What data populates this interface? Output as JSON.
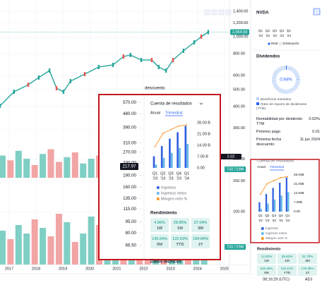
{
  "toolbar": {
    "time": "08:16:29 (UTC)",
    "adj": "ADJ"
  },
  "price_chart": {
    "type": "line",
    "color": "#26a69a",
    "log_scale": true,
    "x": [
      2016.66,
      2017.18,
      2017.71,
      2018.1,
      2018.5,
      2018.76,
      2019.02,
      2019.28,
      2019.81,
      2020.33,
      2020.86,
      2021.25,
      2021.51,
      2021.91,
      2022.3,
      2022.56,
      2022.83,
      2023.09,
      2023.48,
      2023.88,
      2024.14,
      2024.4
    ],
    "values": [
      403,
      485,
      532,
      585,
      641,
      508,
      485,
      558,
      612,
      672,
      691,
      772,
      787,
      737,
      737,
      672,
      641,
      737,
      832,
      930,
      1002,
      1064.69
    ],
    "xlim": [
      2016.66,
      2025.19
    ],
    "xticks": [
      2017,
      2018,
      2019,
      2020,
      2021,
      2022,
      2023,
      2024,
      2025
    ],
    "ylim": [
      70,
      1500
    ],
    "yticks": [
      {
        "value": 1400,
        "label": "1,400.00"
      },
      {
        "value": 1200,
        "label": "1,200.00"
      },
      {
        "value": 1000,
        "label": "1,000.00"
      },
      {
        "value": 800,
        "label": "800.00"
      },
      {
        "value": 600,
        "label": "600.00"
      },
      {
        "value": 500,
        "label": "500.00"
      },
      {
        "value": 400,
        "label": "400.00"
      },
      {
        "value": 300,
        "label": "300.00"
      },
      {
        "value": 200,
        "label": "200.00"
      },
      {
        "value": 150,
        "label": "150.00"
      },
      {
        "value": 100,
        "label": "100.00"
      }
    ],
    "last_price": {
      "value": 1064.69,
      "label": "1,064.69"
    },
    "badges": [
      "2.02",
      "733.719M",
      "733.719M"
    ],
    "volume": {
      "x": [
        2016.75,
        2017.05,
        2017.35,
        2017.65,
        2017.95,
        2018.25,
        2018.55,
        2018.85,
        2019.15,
        2019.45,
        2019.75,
        2020.05,
        2020.35,
        2020.65,
        2020.95,
        2021.25,
        2021.55,
        2021.85,
        2022.15,
        2022.45,
        2022.75,
        2023.05,
        2023.35,
        2023.65,
        2023.95,
        2024.25
      ],
      "values": [
        60,
        45,
        70,
        55,
        80,
        65,
        50,
        90,
        75,
        40,
        55,
        85,
        70,
        60,
        45,
        50,
        65,
        80,
        55,
        70,
        60,
        45,
        75,
        65,
        55,
        50
      ],
      "upper_values": [
        70,
        55,
        85,
        60,
        40,
        75,
        90,
        50,
        65,
        80,
        45,
        60,
        70,
        55,
        85,
        50,
        40,
        65,
        75,
        60,
        50,
        70,
        55,
        80,
        65,
        60
      ],
      "up": [
        true,
        false,
        true,
        true,
        false,
        true,
        false,
        false,
        true,
        false,
        true,
        true,
        false,
        true,
        true,
        false,
        true,
        false,
        false,
        true,
        false,
        true,
        true,
        false,
        true,
        true
      ],
      "colors": {
        "up": "#7fcfc5",
        "down": "#f2a5a5"
      },
      "ylim": [
        0,
        100
      ]
    }
  },
  "popup": {
    "ghost_text": "descuento",
    "footer": "Datos técnicos",
    "price_axis": {
      "log_scale": true,
      "ylim": [
        66.5,
        670
      ],
      "ticks": [
        {
          "value": 670,
          "label": "670.00"
        },
        {
          "value": 570,
          "label": "570.00"
        },
        {
          "value": 480,
          "label": "480.00"
        },
        {
          "value": 390,
          "label": "390.00"
        },
        {
          "value": 310,
          "label": "310.00"
        },
        {
          "value": 270,
          "label": "270.00"
        },
        {
          "value": 230,
          "label": "230.00"
        },
        {
          "value": 190,
          "label": "190.00"
        },
        {
          "value": 160,
          "label": "160.00"
        },
        {
          "value": 135,
          "label": "135.00"
        },
        {
          "value": 115,
          "label": "115.00"
        },
        {
          "value": 95,
          "label": "95.00"
        },
        {
          "value": 80,
          "label": "80.00"
        },
        {
          "value": 66.5,
          "label": "66.50"
        }
      ],
      "current": 217.97
    },
    "income": {
      "type": "bar",
      "title": "Cuenta de resultados",
      "tabs": [
        "Anual",
        "Trimestral"
      ],
      "quarters": [
        "Q1",
        "Q2",
        "Q3",
        "Q4",
        "Q1"
      ],
      "years": [
        "'23",
        "'23",
        "'23",
        "'23",
        "'24"
      ],
      "ylim": [
        0,
        28
      ],
      "yticks": [
        {
          "value": 28,
          "label": "28.00 B"
        },
        {
          "value": 21,
          "label": "21.00 B"
        },
        {
          "value": 14,
          "label": "14.00 B"
        },
        {
          "value": 7,
          "label": "7.00 B"
        },
        {
          "value": 0,
          "label": "0.00"
        }
      ],
      "y2lim": [
        0,
        60
      ],
      "series": [
        {
          "name": "Ingresos",
          "color": "#2f5fe0",
          "values": [
            7.19,
            13.51,
            18.12,
            22.1,
            26.04
          ]
        },
        {
          "name": "Ingresos netos",
          "color": "#5fb7e8",
          "values": [
            2.04,
            6.19,
            9.24,
            12.29,
            14.88
          ]
        },
        {
          "name": "Margen neto %",
          "color": "#f7931a",
          "axis": "y2",
          "values": [
            28.4,
            45.8,
            51.0,
            55.6,
            57.1
          ]
        }
      ]
    },
    "performance": {
      "title": "Rendimiento",
      "cells": [
        {
          "value": "4.96%",
          "label": "1W"
        },
        {
          "value": "28.86%",
          "label": "1M"
        },
        {
          "value": "37.04%",
          "label": "3M"
        },
        {
          "value": "135.64%",
          "label": "6M"
        },
        {
          "value": "122.63%",
          "label": "YTD"
        },
        {
          "value": "184.84%",
          "label": "1Y"
        }
      ]
    }
  },
  "sidebar": {
    "symbol": "NVDA",
    "earnings": {
      "quarters": [
        "Q1",
        "Q2",
        "Q3",
        "Q4",
        "Q1"
      ],
      "years": [
        "'23",
        "'23",
        "'23",
        "'23",
        "'24"
      ],
      "legend": [
        "Real",
        "Estimación"
      ]
    },
    "dividends": {
      "title": "Dividendos",
      "values": [
        0.94
      ],
      "value_labels": [
        "0.94%"
      ],
      "legend": [
        "Beneficios retenidos",
        "Ratio de reparto de dividendos (TTM)"
      ]
    },
    "stats": [
      {
        "label": "Rentabilidad por dividendo TTM",
        "value": "0.02%"
      },
      {
        "label": "Próximo pago",
        "value": "0.01"
      },
      {
        "label": "Próxima fecha descuento",
        "value": "11 jun 2024"
      }
    ],
    "income": {
      "type": "bar",
      "title": "Cuenta de resultados",
      "tabs": [
        "Anual",
        "Trimestral"
      ],
      "quarters": [
        "Q1",
        "Q2",
        "Q3",
        "Q4",
        "Q1"
      ],
      "years": [
        "'23",
        "'23",
        "'23",
        "'23",
        "'24"
      ],
      "ylim": [
        0,
        28
      ],
      "yticks": [
        {
          "value": 28,
          "label": "28.00B"
        },
        {
          "value": 21,
          "label": "21.00B"
        },
        {
          "value": 14,
          "label": "14.00B"
        },
        {
          "value": 7,
          "label": "7.00B"
        },
        {
          "value": 0,
          "label": "0.00"
        }
      ],
      "y2lim": [
        0,
        60
      ],
      "series": [
        {
          "name": "Ingresos",
          "color": "#2f5fe0",
          "values": [
            7.19,
            13.51,
            18.12,
            22.1,
            26.04
          ]
        },
        {
          "name": "Ingresos netos",
          "color": "#5fb7e8",
          "values": [
            2.04,
            6.19,
            9.24,
            12.29,
            14.88
          ]
        },
        {
          "name": "Margen neto %",
          "color": "#f7931a",
          "axis": "y2",
          "values": [
            28.4,
            45.8,
            51.0,
            55.6,
            57.1
          ]
        }
      ]
    },
    "performance": {
      "title": "Rendimiento",
      "cells": [
        {
          "value": "12.82%",
          "label": "1W"
        },
        {
          "value": "26.82%",
          "label": "1M"
        },
        {
          "value": "31.78%",
          "label": "3M"
        },
        {
          "value": "119.46%",
          "label": "6M"
        },
        {
          "value": "116.21%",
          "label": "YTD"
        },
        {
          "value": "176.38%",
          "label": "1Y"
        }
      ]
    }
  }
}
